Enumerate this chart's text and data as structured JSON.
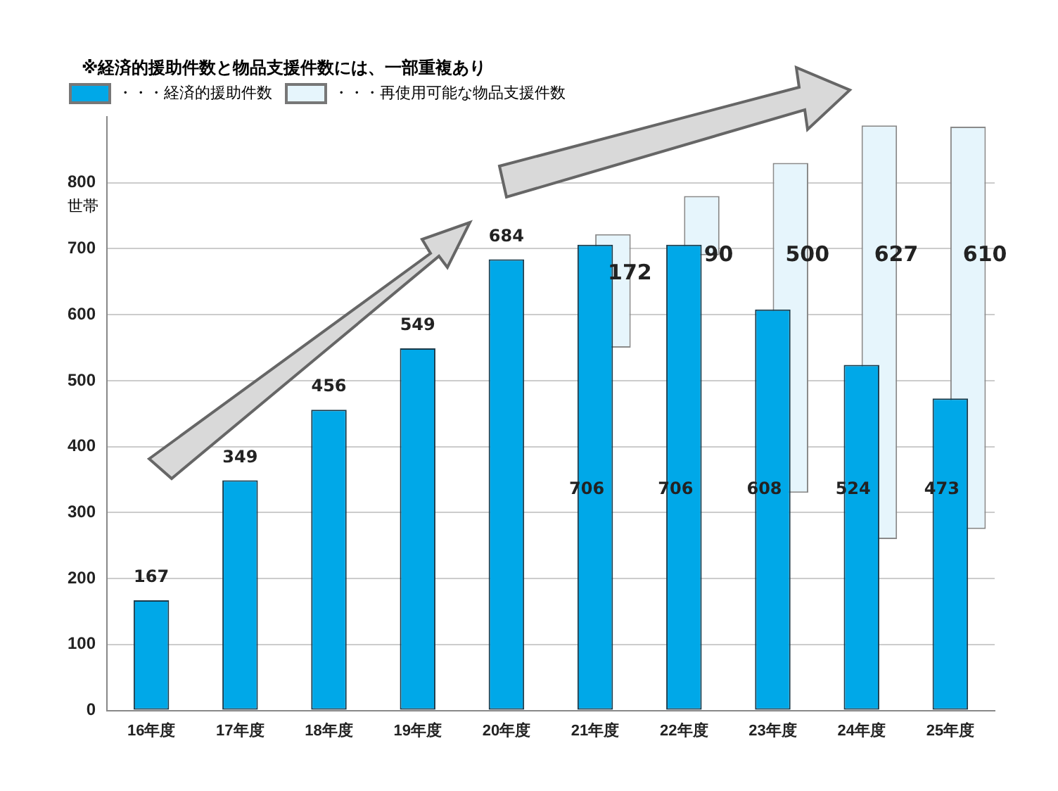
{
  "chart_data": {
    "type": "bar",
    "title": "※経済的援助件数と物品支援件数には、一部重複あり",
    "ylabel": "世帯",
    "categories": [
      "16年度",
      "17年度",
      "18年度",
      "19年度",
      "20年度",
      "21年度",
      "22年度",
      "23年度",
      "24年度",
      "25年度"
    ],
    "series": [
      {
        "name": "・・・経済的援助件数",
        "color": "#00a8e8",
        "values": [
          167,
          349,
          456,
          549,
          684,
          706,
          706,
          608,
          524,
          473
        ]
      },
      {
        "name": "・・・再使用可能な物品支援件数",
        "color": "#e6f5fc",
        "values": [
          null,
          null,
          null,
          null,
          null,
          172,
          90,
          500,
          627,
          610
        ],
        "base": [
          null,
          null,
          null,
          null,
          null,
          550,
          690,
          330,
          260,
          275
        ]
      }
    ],
    "ylim": [
      0,
      900
    ],
    "yticks": [
      0,
      100,
      200,
      300,
      400,
      500,
      600,
      700,
      800
    ],
    "grid": "y",
    "legend": "top left",
    "data_labels": true
  }
}
